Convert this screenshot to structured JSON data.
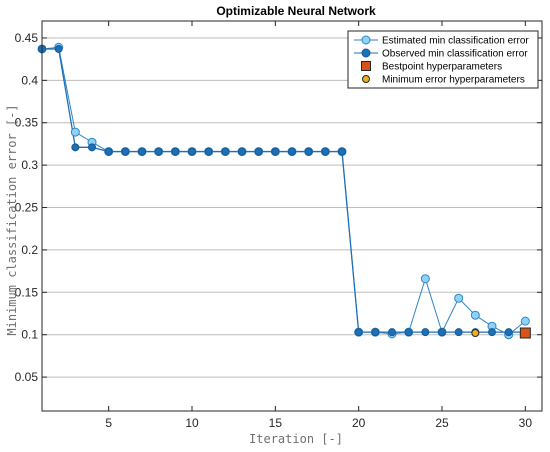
{
  "chart_data": {
    "type": "line",
    "title": "Optimizable Neural Network",
    "xlabel": "Iteration [-]",
    "ylabel": "Minimum classification error [-]",
    "xlim": [
      1,
      31
    ],
    "ylim": [
      0.01,
      0.47
    ],
    "xticks": [
      5,
      10,
      15,
      20,
      25,
      30
    ],
    "yticks": [
      0.05,
      0.1,
      0.15,
      0.2,
      0.25,
      0.3,
      0.35,
      0.4,
      0.45
    ],
    "grid": "horizontal",
    "legend_position": "top-right",
    "x": [
      1,
      2,
      3,
      4,
      5,
      6,
      7,
      8,
      9,
      10,
      11,
      12,
      13,
      14,
      15,
      16,
      17,
      18,
      19,
      20,
      21,
      22,
      23,
      24,
      25,
      26,
      27,
      28,
      29,
      30
    ],
    "series": [
      {
        "name": "Estimated min classification error",
        "color": "#8fd2f5",
        "edge_color": "#2d86c4",
        "values": [
          0.437,
          0.439,
          0.339,
          0.327,
          0.316,
          0.316,
          0.316,
          0.316,
          0.316,
          0.316,
          0.316,
          0.316,
          0.316,
          0.316,
          0.316,
          0.316,
          0.316,
          0.316,
          0.316,
          0.103,
          0.103,
          0.101,
          0.103,
          0.166,
          0.103,
          0.143,
          0.123,
          0.11,
          0.1,
          0.116
        ]
      },
      {
        "name": "Observed min classification error",
        "color": "#1f6fb5",
        "edge_color": "#155a96",
        "values": [
          0.437,
          0.437,
          0.321,
          0.321,
          0.316,
          0.316,
          0.316,
          0.316,
          0.316,
          0.316,
          0.316,
          0.316,
          0.316,
          0.316,
          0.316,
          0.316,
          0.316,
          0.316,
          0.316,
          0.103,
          0.103,
          0.103,
          0.103,
          0.103,
          0.103,
          0.103,
          0.103,
          0.103,
          0.103,
          0.103
        ]
      }
    ],
    "markers": [
      {
        "name": "Bestpoint hyperparameters",
        "shape": "square",
        "color": "#d95319",
        "x": 30,
        "y": 0.102
      },
      {
        "name": "Minimum error hyperparameters",
        "shape": "circle",
        "color": "#edb120",
        "x": 27,
        "y": 0.102
      }
    ]
  }
}
